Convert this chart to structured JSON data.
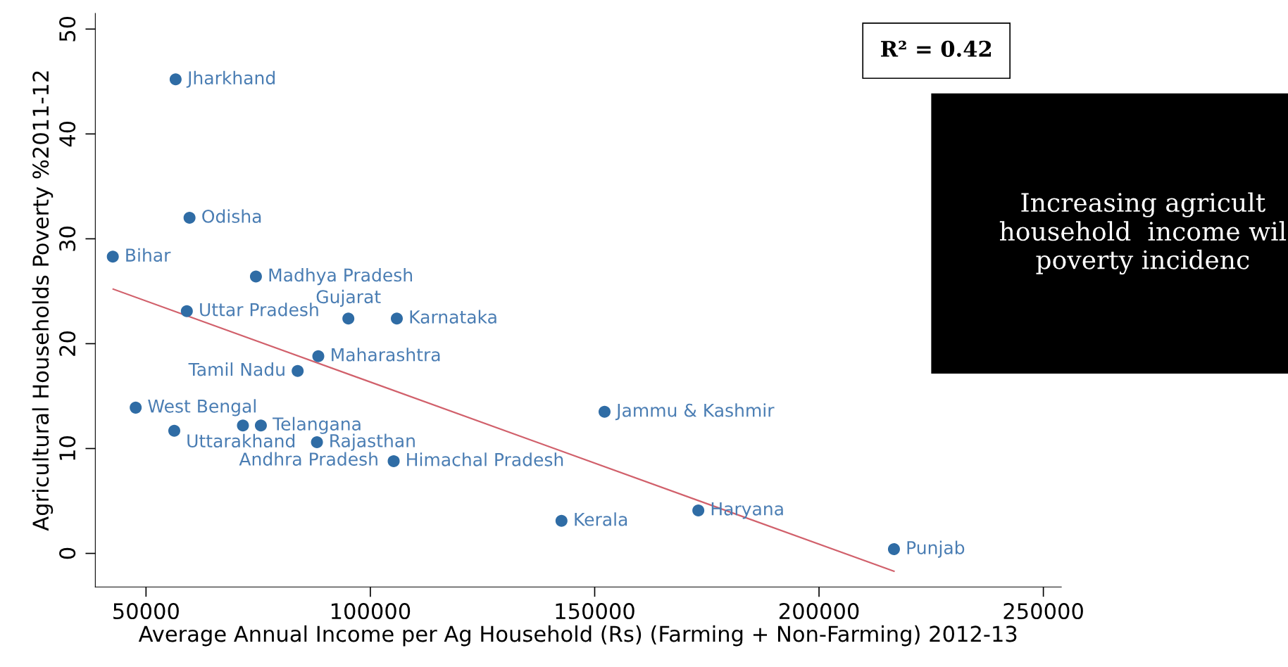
{
  "chart_data": {
    "type": "scatter",
    "xlabel": "Average Annual Income per Ag Household (Rs) (Farming + Non-Farming) 2012-13",
    "ylabel": "Agricultural Households Poverty %2011-12",
    "xlim": [
      38700,
      254000
    ],
    "ylim": [
      -3.2,
      51.5
    ],
    "xticks": [
      50000,
      100000,
      150000,
      200000,
      250000
    ],
    "yticks": [
      0,
      10,
      20,
      30,
      40,
      50
    ],
    "grid": false,
    "legend": false,
    "series": [
      {
        "marker": "circle",
        "color": "#2f6ca5",
        "x": [
          56600,
          59700,
          42600,
          74500,
          59100,
          95100,
          105900,
          88400,
          83800,
          47700,
          56300,
          71600,
          75600,
          88100,
          105200,
          152200,
          142600,
          173100,
          216700
        ],
        "values": [
          45.2,
          32.0,
          28.3,
          26.4,
          23.1,
          22.4,
          22.4,
          18.8,
          17.4,
          13.9,
          11.7,
          12.2,
          12.2,
          10.6,
          8.8,
          13.5,
          3.1,
          4.1,
          0.4
        ]
      },
      {
        "type": "line",
        "line_style": "solid",
        "color": "#d1606b",
        "x": [
          42700,
          216700
        ],
        "values": [
          25.2,
          -1.7
        ]
      }
    ],
    "annotations": [
      "R² = 0.42",
      "Increasing agricult\nhousehold  income wil\npoverty incidenc",
      {
        "text": "Jharkhand",
        "x": 56600,
        "y": 45.2
      },
      {
        "text": "Odisha",
        "x": 59700,
        "y": 32.0
      },
      {
        "text": "Bihar",
        "x": 42600,
        "y": 28.3
      },
      {
        "text": "Madhya Pradesh",
        "x": 74500,
        "y": 26.4
      },
      {
        "text": "Uttar Pradesh",
        "x": 59100,
        "y": 23.1
      },
      {
        "text": "Gujarat",
        "x": 95100,
        "y": 22.4
      },
      {
        "text": "Karnataka",
        "x": 105900,
        "y": 22.4
      },
      {
        "text": "Maharashtra",
        "x": 88400,
        "y": 18.8
      },
      {
        "text": "Tamil Nadu",
        "x": 83800,
        "y": 17.4
      },
      {
        "text": "West Bengal",
        "x": 47700,
        "y": 13.9
      },
      {
        "text": "Uttarakhand",
        "x": 56300,
        "y": 11.7
      },
      {
        "text": "Andhra Pradesh",
        "x": 71600,
        "y": 12.2
      },
      {
        "text": "Telangana",
        "x": 75600,
        "y": 12.2
      },
      {
        "text": "Rajasthan",
        "x": 88100,
        "y": 10.6
      },
      {
        "text": "Himachal Pradesh",
        "x": 105200,
        "y": 8.8
      },
      {
        "text": "Jammu & Kashmir",
        "x": 152200,
        "y": 13.5
      },
      {
        "text": "Kerala",
        "x": 142600,
        "y": 3.1
      },
      {
        "text": "Haryana",
        "x": 173100,
        "y": 4.1
      },
      {
        "text": "Punjab",
        "x": 216700,
        "y": 0.4
      }
    ]
  }
}
